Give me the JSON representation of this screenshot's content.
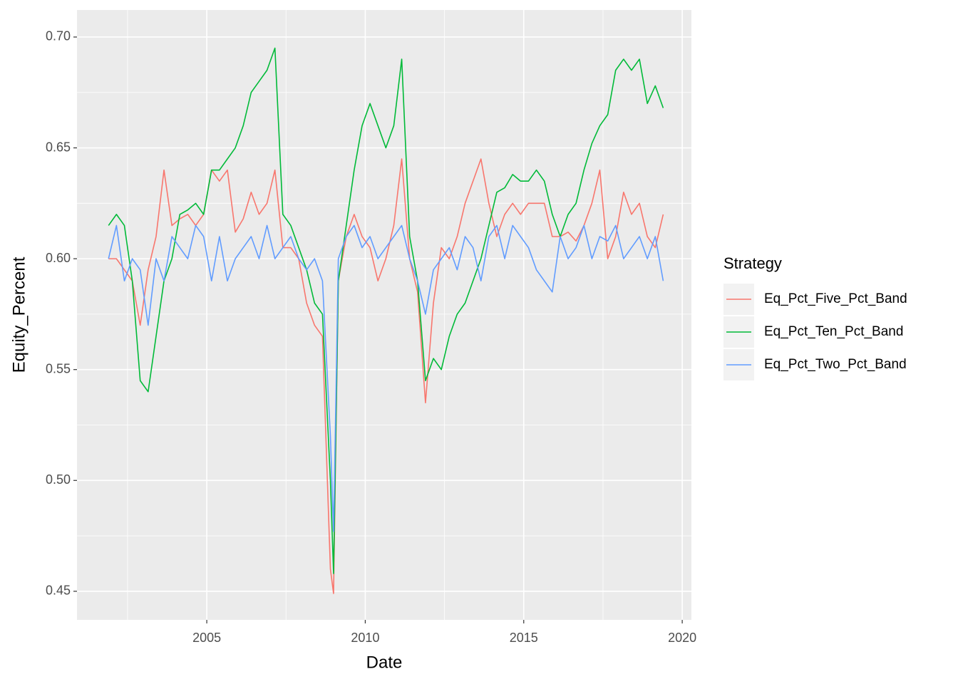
{
  "chart_data": {
    "type": "line",
    "x_label": "Date",
    "y_label": "Equity_Percent",
    "legend_title": "Strategy",
    "legend_position": "right",
    "grid": true,
    "xlim": [
      2000.905,
      2020.29
    ],
    "ylim": [
      0.4371,
      0.7122
    ],
    "xticks": [
      2005,
      2010,
      2015,
      2020
    ],
    "yticks": [
      0.45,
      {
        "value": 0.5,
        "label": "0.50"
      },
      0.55,
      {
        "value": 0.6,
        "label": "0.60"
      },
      0.65,
      {
        "value": 0.7,
        "label": "0.70"
      }
    ],
    "x": [
      2001.9,
      2002.15,
      2002.4,
      2002.65,
      2002.9,
      2003.15,
      2003.4,
      2003.65,
      2003.9,
      2004.15,
      2004.4,
      2004.65,
      2004.9,
      2005.15,
      2005.4,
      2005.65,
      2005.9,
      2006.15,
      2006.4,
      2006.65,
      2006.9,
      2007.15,
      2007.4,
      2007.65,
      2007.9,
      2008.15,
      2008.4,
      2008.65,
      2008.9,
      2009.0,
      2009.15,
      2009.4,
      2009.65,
      2009.9,
      2010.15,
      2010.4,
      2010.65,
      2010.9,
      2011.15,
      2011.4,
      2011.65,
      2011.9,
      2012.15,
      2012.4,
      2012.65,
      2012.9,
      2013.15,
      2013.4,
      2013.65,
      2013.9,
      2014.15,
      2014.4,
      2014.65,
      2014.9,
      2015.15,
      2015.4,
      2015.65,
      2015.9,
      2016.15,
      2016.4,
      2016.65,
      2016.9,
      2017.15,
      2017.4,
      2017.65,
      2017.9,
      2018.15,
      2018.4,
      2018.65,
      2018.9,
      2019.15,
      2019.4
    ],
    "series": [
      {
        "name": "Eq_Pct_Five_Pct_Band",
        "color": "#F8766D",
        "values": [
          0.6,
          0.6,
          0.595,
          0.59,
          0.57,
          0.595,
          0.61,
          0.64,
          0.615,
          0.618,
          0.62,
          0.615,
          0.62,
          0.64,
          0.635,
          0.64,
          0.612,
          0.618,
          0.63,
          0.62,
          0.625,
          0.64,
          0.605,
          0.605,
          0.6,
          0.58,
          0.57,
          0.565,
          0.46,
          0.449,
          0.59,
          0.61,
          0.62,
          0.61,
          0.605,
          0.59,
          0.6,
          0.615,
          0.645,
          0.6,
          0.585,
          0.535,
          0.58,
          0.605,
          0.6,
          0.61,
          0.625,
          0.635,
          0.645,
          0.625,
          0.61,
          0.62,
          0.625,
          0.62,
          0.625,
          0.625,
          0.625,
          0.61,
          0.61,
          0.612,
          0.608,
          0.615,
          0.625,
          0.64,
          0.6,
          0.61,
          0.63,
          0.62,
          0.625,
          0.61,
          0.605,
          0.62
        ]
      },
      {
        "name": "Eq_Pct_Ten_Pct_Band",
        "color": "#00BA38",
        "values": [
          0.615,
          0.62,
          0.615,
          0.59,
          0.545,
          0.54,
          0.565,
          0.59,
          0.6,
          0.62,
          0.622,
          0.625,
          0.62,
          0.64,
          0.64,
          0.645,
          0.65,
          0.66,
          0.675,
          0.68,
          0.685,
          0.695,
          0.62,
          0.615,
          0.605,
          0.595,
          0.58,
          0.575,
          0.5,
          0.458,
          0.59,
          0.615,
          0.64,
          0.66,
          0.67,
          0.66,
          0.65,
          0.66,
          0.69,
          0.61,
          0.59,
          0.545,
          0.555,
          0.55,
          0.565,
          0.575,
          0.58,
          0.59,
          0.6,
          0.615,
          0.63,
          0.632,
          0.638,
          0.635,
          0.635,
          0.64,
          0.635,
          0.62,
          0.61,
          0.62,
          0.625,
          0.64,
          0.652,
          0.66,
          0.665,
          0.685,
          0.69,
          0.685,
          0.69,
          0.67,
          0.678,
          0.668
        ]
      },
      {
        "name": "Eq_Pct_Two_Pct_Band",
        "color": "#619CFF",
        "values": [
          0.6,
          0.615,
          0.59,
          0.6,
          0.595,
          0.57,
          0.6,
          0.59,
          0.61,
          0.605,
          0.6,
          0.615,
          0.61,
          0.59,
          0.61,
          0.59,
          0.6,
          0.605,
          0.61,
          0.6,
          0.615,
          0.6,
          0.605,
          0.61,
          0.6,
          0.595,
          0.6,
          0.59,
          0.52,
          0.477,
          0.6,
          0.61,
          0.615,
          0.605,
          0.61,
          0.6,
          0.605,
          0.61,
          0.615,
          0.6,
          0.59,
          0.575,
          0.595,
          0.6,
          0.605,
          0.595,
          0.61,
          0.605,
          0.59,
          0.61,
          0.615,
          0.6,
          0.615,
          0.61,
          0.605,
          0.595,
          0.59,
          0.585,
          0.61,
          0.6,
          0.605,
          0.615,
          0.6,
          0.61,
          0.608,
          0.615,
          0.6,
          0.605,
          0.61,
          0.6,
          0.61,
          0.59
        ]
      }
    ]
  }
}
